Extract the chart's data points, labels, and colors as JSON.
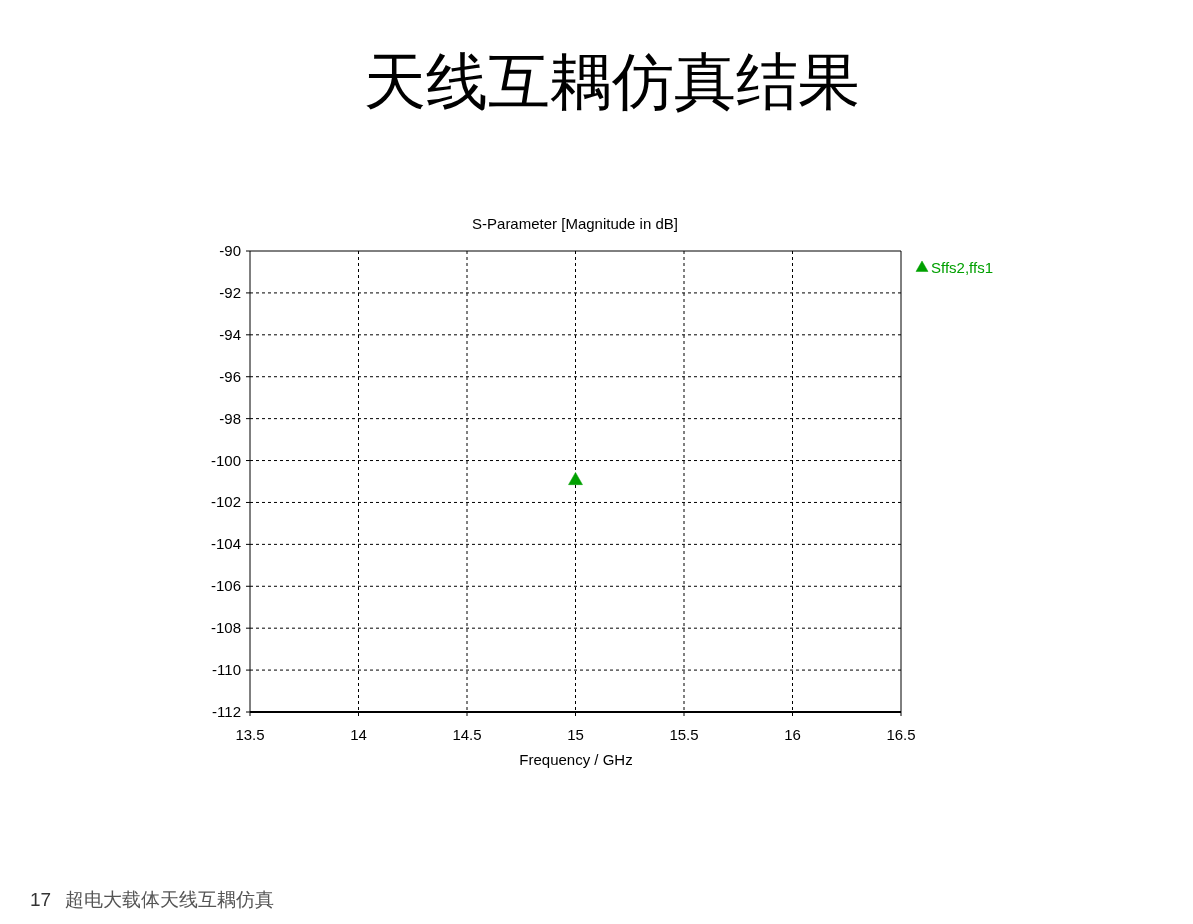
{
  "chart_data": {
    "type": "scatter",
    "title": "天线互耦仿真结果",
    "subtitle": "S-Parameter [Magnitude in dB]",
    "xlabel": "Frequency / GHz",
    "annotations": [
      "17",
      "超电大载体天线互耦仿真"
    ],
    "x": [
      15
    ],
    "series": [
      {
        "name": "Sffs2,ffs1",
        "color": "#00a000",
        "values": [
          -100.9
        ]
      }
    ],
    "xlim": [
      13.5,
      16.5
    ],
    "xticks": [
      13.5,
      14,
      14.5,
      15,
      15.5,
      16,
      16.5
    ],
    "ylim": [
      -112,
      -90
    ],
    "yticks": [
      -112,
      -110,
      -108,
      -106,
      -104,
      -102,
      -100,
      -98,
      -96,
      -94,
      -92,
      -90
    ],
    "grid": true,
    "legend": "top right",
    "marker": "triangle"
  }
}
